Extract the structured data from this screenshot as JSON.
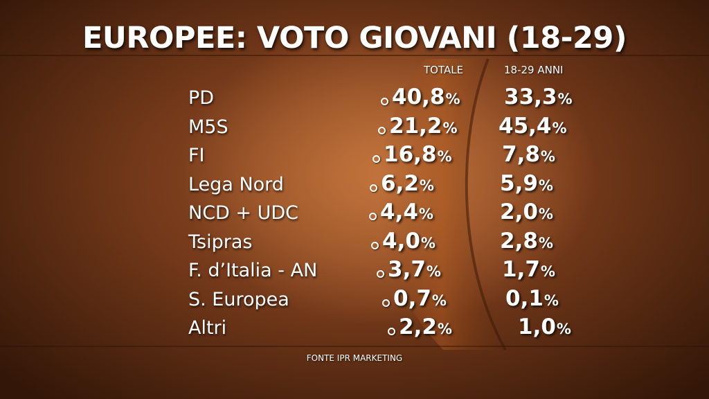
{
  "title": "EUROPEE: VOTO GIOVANI (18-29)",
  "columns": {
    "totale": "TOTALE",
    "giovani": "18-29 ANNI"
  },
  "source": "FONTE IPR MARKETING",
  "chart_data": {
    "type": "table",
    "title": "EUROPEE: VOTO GIOVANI (18-29)",
    "columns": [
      "TOTALE",
      "18-29 ANNI"
    ],
    "unit": "%",
    "rows": [
      {
        "party": "PD",
        "totale": "40,8",
        "giovani": "33,3"
      },
      {
        "party": "M5S",
        "totale": "21,2",
        "giovani": "45,4"
      },
      {
        "party": "FI",
        "totale": "16,8",
        "giovani": "7,8"
      },
      {
        "party": "Lega Nord",
        "totale": "6,2",
        "giovani": "5,9"
      },
      {
        "party": "NCD + UDC",
        "totale": "4,4",
        "giovani": "2,0"
      },
      {
        "party": "Tsipras",
        "totale": "4,0",
        "giovani": "2,8"
      },
      {
        "party": "F. d’Italia - AN",
        "totale": "3,7",
        "giovani": "1,7"
      },
      {
        "party": "S. Europea",
        "totale": "0,7",
        "giovani": "0,1"
      },
      {
        "party": "Altri",
        "totale": "2,2",
        "giovani": "1,0"
      }
    ]
  }
}
